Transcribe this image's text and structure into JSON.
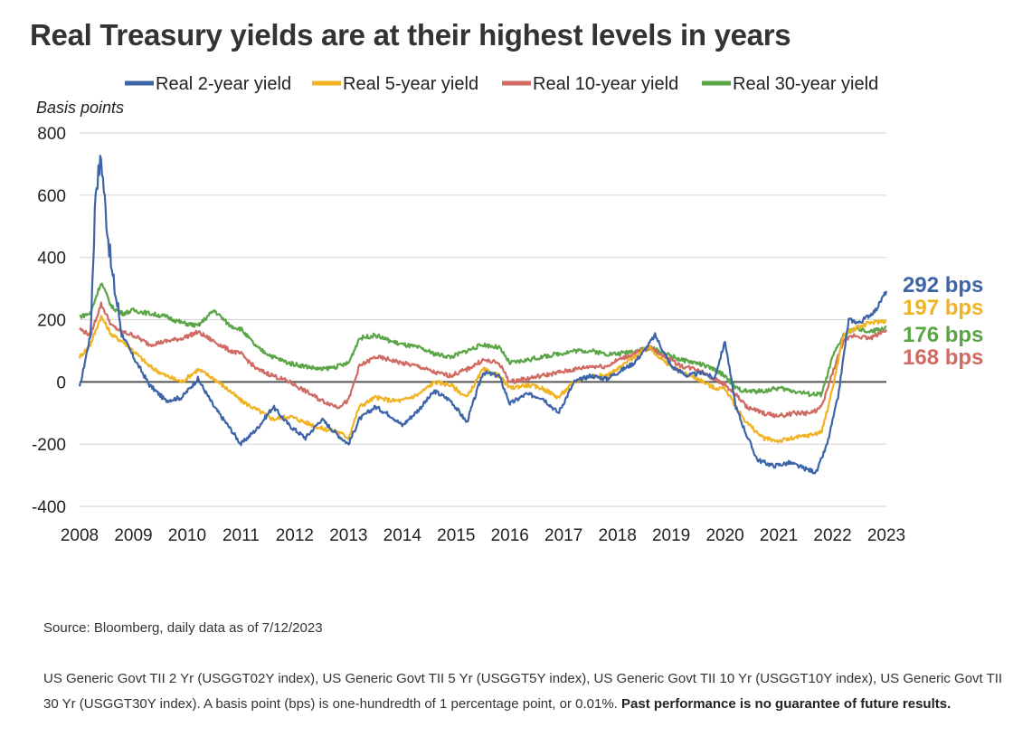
{
  "title": "Real Treasury yields are at their highest levels in years",
  "source": "Source: Bloomberg, daily data as of 7/12/2023",
  "notes": {
    "text": "US Generic Govt TII 2 Yr (USGGT02Y index), US Generic Govt TII 5 Yr (USGGT5Y index), US Generic Govt TII 10 Yr (USGGT10Y index), US Generic Govt TII 30 Yr (USGGT30Y index). A basis point (bps) is one-hundredth of 1 percentage point, or 0.01%.",
    "bold": "Past performance is no guarantee of future results."
  },
  "chart_data": {
    "type": "line",
    "title": "Real Treasury yields are at their highest levels in years",
    "ylabel": "Basis points",
    "xlabel": "",
    "ylim": [
      -400,
      800
    ],
    "xlim": [
      2008,
      2023
    ],
    "yticks": [
      800,
      600,
      400,
      200,
      0,
      -200,
      -400
    ],
    "xticks": [
      2008,
      2009,
      2010,
      2011,
      2012,
      2013,
      2014,
      2015,
      2016,
      2017,
      2018,
      2019,
      2020,
      2021,
      2022,
      2023
    ],
    "grid": true,
    "legend_position": "top",
    "series": [
      {
        "name": "Real 2-year yield",
        "color": "#3e64a8",
        "end_label": "292 bps",
        "x": [
          2008.0,
          2008.2,
          2008.3,
          2008.4,
          2008.5,
          2008.6,
          2008.8,
          2009.0,
          2009.3,
          2009.6,
          2009.9,
          2010.2,
          2010.5,
          2010.8,
          2011.0,
          2011.3,
          2011.6,
          2011.9,
          2012.2,
          2012.5,
          2012.8,
          2013.0,
          2013.2,
          2013.5,
          2013.8,
          2014.0,
          2014.3,
          2014.6,
          2014.9,
          2015.2,
          2015.5,
          2015.8,
          2016.0,
          2016.3,
          2016.6,
          2016.9,
          2017.2,
          2017.5,
          2017.8,
          2018.0,
          2018.3,
          2018.5,
          2018.7,
          2019.0,
          2019.3,
          2019.6,
          2019.8,
          2020.0,
          2020.2,
          2020.4,
          2020.6,
          2020.9,
          2021.2,
          2021.5,
          2021.7,
          2021.9,
          2022.1,
          2022.3,
          2022.5,
          2022.8,
          2023.0
        ],
        "values": [
          -20,
          150,
          620,
          720,
          520,
          350,
          150,
          80,
          -10,
          -60,
          -50,
          10,
          -80,
          -150,
          -200,
          -150,
          -80,
          -140,
          -180,
          -120,
          -170,
          -200,
          -120,
          -80,
          -110,
          -140,
          -90,
          -30,
          -60,
          -130,
          30,
          20,
          -70,
          -40,
          -50,
          -100,
          0,
          20,
          10,
          30,
          60,
          100,
          150,
          50,
          20,
          30,
          10,
          130,
          -80,
          -170,
          -250,
          -270,
          -260,
          -280,
          -290,
          -200,
          -50,
          200,
          190,
          230,
          292
        ]
      },
      {
        "name": "Real 5-year yield",
        "color": "#f0b323",
        "end_label": "197 bps",
        "x": [
          2008.0,
          2008.2,
          2008.4,
          2008.6,
          2008.8,
          2009.0,
          2009.3,
          2009.6,
          2009.9,
          2010.2,
          2010.5,
          2010.8,
          2011.0,
          2011.3,
          2011.6,
          2011.9,
          2012.2,
          2012.5,
          2012.8,
          2013.0,
          2013.2,
          2013.5,
          2013.8,
          2014.0,
          2014.3,
          2014.6,
          2014.9,
          2015.2,
          2015.5,
          2015.8,
          2016.0,
          2016.3,
          2016.6,
          2016.9,
          2017.2,
          2017.5,
          2017.8,
          2018.0,
          2018.3,
          2018.6,
          2018.9,
          2019.2,
          2019.5,
          2019.8,
          2020.0,
          2020.2,
          2020.4,
          2020.7,
          2021.0,
          2021.3,
          2021.6,
          2021.8,
          2022.0,
          2022.2,
          2022.4,
          2022.7,
          2023.0
        ],
        "values": [
          80,
          120,
          210,
          150,
          130,
          100,
          50,
          20,
          0,
          40,
          10,
          -30,
          -60,
          -90,
          -120,
          -110,
          -130,
          -150,
          -160,
          -180,
          -80,
          -50,
          -60,
          -60,
          -40,
          0,
          -10,
          -50,
          40,
          20,
          -20,
          -10,
          -20,
          -50,
          0,
          20,
          20,
          40,
          80,
          110,
          60,
          30,
          10,
          -20,
          -20,
          -80,
          -130,
          -180,
          -190,
          -180,
          -170,
          -160,
          -20,
          150,
          170,
          190,
          197
        ]
      },
      {
        "name": "Real 10-year yield",
        "color": "#cf6b63",
        "end_label": "168 bps",
        "x": [
          2008.0,
          2008.2,
          2008.4,
          2008.6,
          2008.8,
          2009.0,
          2009.3,
          2009.6,
          2009.9,
          2010.2,
          2010.5,
          2010.8,
          2011.0,
          2011.3,
          2011.6,
          2011.9,
          2012.2,
          2012.5,
          2012.8,
          2013.0,
          2013.2,
          2013.5,
          2013.8,
          2014.0,
          2014.3,
          2014.6,
          2014.9,
          2015.2,
          2015.5,
          2015.8,
          2016.0,
          2016.3,
          2016.6,
          2016.9,
          2017.2,
          2017.5,
          2017.8,
          2018.0,
          2018.3,
          2018.6,
          2018.9,
          2019.2,
          2019.5,
          2019.8,
          2020.0,
          2020.2,
          2020.4,
          2020.7,
          2021.0,
          2021.3,
          2021.6,
          2021.8,
          2022.0,
          2022.2,
          2022.4,
          2022.7,
          2023.0
        ],
        "values": [
          170,
          150,
          250,
          180,
          160,
          150,
          120,
          130,
          140,
          160,
          130,
          100,
          90,
          40,
          20,
          0,
          -30,
          -60,
          -80,
          -60,
          50,
          80,
          70,
          60,
          50,
          30,
          20,
          40,
          70,
          60,
          0,
          10,
          20,
          30,
          40,
          50,
          50,
          70,
          90,
          110,
          80,
          50,
          40,
          10,
          -10,
          -40,
          -80,
          -100,
          -110,
          -100,
          -100,
          -80,
          30,
          130,
          150,
          140,
          168
        ]
      },
      {
        "name": "Real 30-year yield",
        "color": "#5aa646",
        "end_label": "176 bps",
        "x": [
          2008.0,
          2008.2,
          2008.4,
          2008.6,
          2008.8,
          2009.0,
          2009.3,
          2009.6,
          2009.9,
          2010.2,
          2010.5,
          2010.8,
          2011.0,
          2011.3,
          2011.6,
          2011.9,
          2012.2,
          2012.5,
          2012.8,
          2013.0,
          2013.2,
          2013.5,
          2013.8,
          2014.0,
          2014.3,
          2014.6,
          2014.9,
          2015.2,
          2015.5,
          2015.8,
          2016.0,
          2016.3,
          2016.6,
          2016.9,
          2017.2,
          2017.5,
          2017.8,
          2018.0,
          2018.3,
          2018.6,
          2018.9,
          2019.2,
          2019.5,
          2019.8,
          2020.0,
          2020.2,
          2020.4,
          2020.7,
          2021.0,
          2021.3,
          2021.6,
          2021.8,
          2022.0,
          2022.2,
          2022.4,
          2022.7,
          2023.0
        ],
        "values": [
          210,
          220,
          320,
          240,
          220,
          230,
          220,
          210,
          190,
          180,
          230,
          180,
          170,
          110,
          80,
          60,
          50,
          40,
          50,
          60,
          140,
          150,
          130,
          120,
          110,
          90,
          80,
          100,
          120,
          110,
          60,
          70,
          80,
          90,
          100,
          100,
          90,
          90,
          100,
          110,
          90,
          70,
          60,
          40,
          20,
          -20,
          -30,
          -30,
          -20,
          -30,
          -40,
          -40,
          80,
          150,
          170,
          160,
          176
        ]
      }
    ]
  }
}
